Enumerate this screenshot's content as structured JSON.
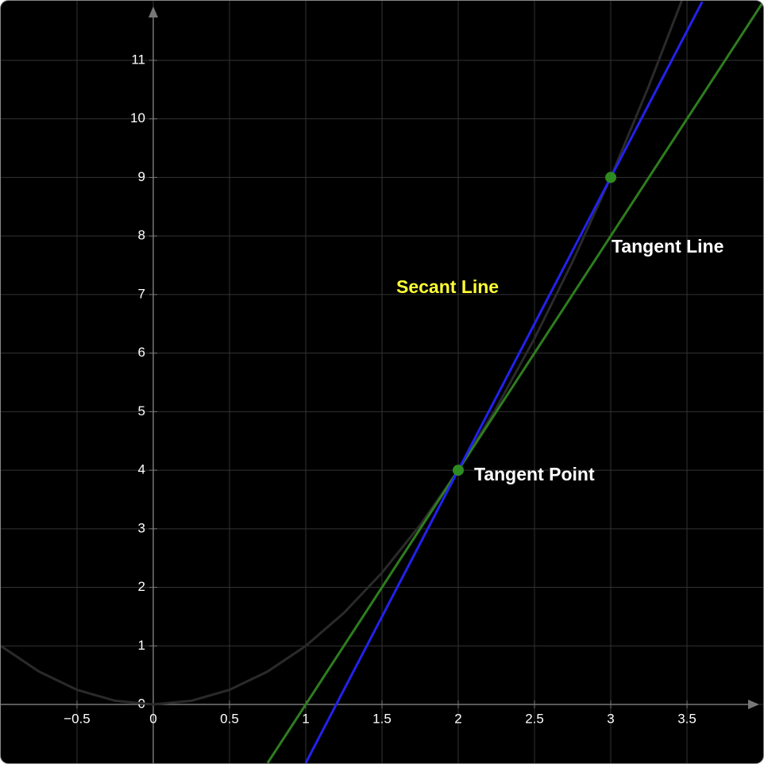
{
  "chart_data": {
    "type": "function",
    "xlim": [
      -1.005,
      4.005
    ],
    "ylim": [
      -1.017,
      12.03
    ],
    "xticks": [
      {
        "value": -0.5,
        "label": "−0.5"
      },
      0,
      0.5,
      1,
      1.5,
      2,
      2.5,
      3,
      3.5
    ],
    "yticks": [
      0,
      1,
      2,
      3,
      4,
      5,
      6,
      7,
      8,
      9,
      10,
      11
    ],
    "grid": true,
    "series": [
      {
        "color": "#2a2a2a",
        "x": [
          -1,
          -0.75,
          -0.5,
          -0.25,
          0,
          0.25,
          0.5,
          0.75,
          1,
          1.25,
          1.5,
          1.75,
          2,
          2.25,
          2.5,
          2.75,
          3,
          3.25,
          3.5
        ],
        "values": [
          1,
          0.5625,
          0.25,
          0.0625,
          0,
          0.0625,
          0.25,
          0.5625,
          1,
          1.5625,
          2.25,
          3.0625,
          4,
          5.0625,
          6.25,
          7.5625,
          9,
          10.5625,
          12.25
        ]
      },
      {
        "color": "#2e7d1e",
        "x": [
          0.75,
          4
        ],
        "values": [
          -1,
          12
        ]
      },
      {
        "color": "#2222ee",
        "x": [
          1,
          3.6
        ],
        "values": [
          -1,
          12
        ]
      }
    ],
    "points": {
      "color": "#2e8b22",
      "x": [
        2,
        3
      ],
      "values": [
        4,
        9
      ]
    },
    "annotations": [
      {
        "text": "Tangent Point",
        "color": "#ffffff"
      },
      {
        "text": "Tangent Line",
        "color": "#ffffff"
      },
      {
        "text": "Secant Line",
        "color": "#ffff33"
      }
    ]
  }
}
